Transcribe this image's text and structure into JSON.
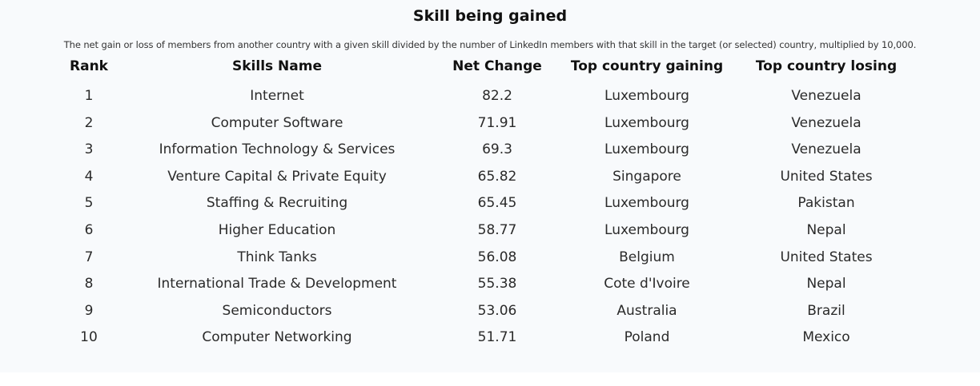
{
  "chart_data": {
    "type": "table",
    "title": "Skill being gained",
    "subtitle": "The net gain or loss of members from another country with a given skill divided by the number of LinkedIn members with that skill in the target (or selected) country, multiplied by 10,000.",
    "columns": [
      "Rank",
      "Skills Name",
      "Net Change",
      "Top country gaining",
      "Top country losing"
    ],
    "rows": [
      [
        "1",
        "Internet",
        "82.2",
        "Luxembourg",
        "Venezuela"
      ],
      [
        "2",
        "Computer Software",
        "71.91",
        "Luxembourg",
        "Venezuela"
      ],
      [
        "3",
        "Information Technology & Services",
        "69.3",
        "Luxembourg",
        "Venezuela"
      ],
      [
        "4",
        "Venture Capital & Private Equity",
        "65.82",
        "Singapore",
        "United States"
      ],
      [
        "5",
        "Staffing & Recruiting",
        "65.45",
        "Luxembourg",
        "Pakistan"
      ],
      [
        "6",
        "Higher Education",
        "58.77",
        "Luxembourg",
        "Nepal"
      ],
      [
        "7",
        "Think Tanks",
        "56.08",
        "Belgium",
        "United States"
      ],
      [
        "8",
        "International Trade & Development",
        "55.38",
        "Cote d'Ivoire",
        "Nepal"
      ],
      [
        "9",
        "Semiconductors",
        "53.06",
        "Australia",
        "Brazil"
      ],
      [
        "10",
        "Computer Networking",
        "51.71",
        "Poland",
        "Mexico"
      ]
    ]
  }
}
